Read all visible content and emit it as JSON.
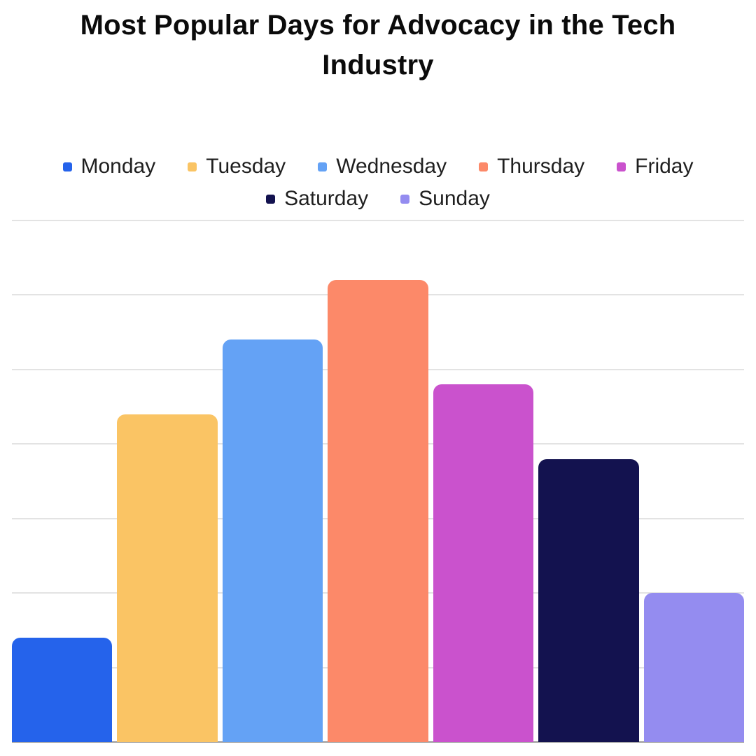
{
  "title": "Most Popular Days for Advocacy in the Tech Industry",
  "colors": {
    "background": "#ffffff",
    "title_text": "#0b0b0b",
    "legend_text": "#1f1f1f",
    "gridline": "#e3e3e3",
    "baseline": "#9b9b9b"
  },
  "chart_data": {
    "type": "bar",
    "title": "Most Popular Days for Advocacy in the Tech Industry",
    "categories": [
      "Monday",
      "Tuesday",
      "Wednesday",
      "Thursday",
      "Friday",
      "Saturday",
      "Sunday"
    ],
    "values": [
      14,
      44,
      54,
      62,
      48,
      38,
      20
    ],
    "series_colors": [
      "#2563EB",
      "#FAC464",
      "#64A2F5",
      "#FC8969",
      "#CA52CD",
      "#13124F",
      "#948CF0"
    ],
    "xlabel": "",
    "ylabel": "",
    "ylim": [
      0,
      70
    ],
    "gridline_step": 10,
    "grid": true,
    "x_tick_labels_shown": false,
    "y_tick_labels_shown": false,
    "legend_position": "top",
    "legend_entries": [
      "Monday",
      "Tuesday",
      "Wednesday",
      "Thursday",
      "Friday",
      "Saturday",
      "Sunday"
    ]
  }
}
